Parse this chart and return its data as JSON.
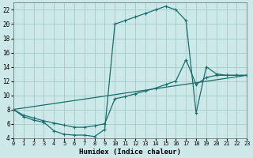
{
  "xlabel": "Humidex (Indice chaleur)",
  "bg_color": "#cde8e8",
  "grid_color": "#aacece",
  "line_color": "#1a6e6e",
  "xlim": [
    0,
    23
  ],
  "ylim": [
    4,
    23
  ],
  "yticks": [
    4,
    6,
    8,
    10,
    12,
    14,
    16,
    18,
    20,
    22
  ],
  "xticks": [
    0,
    1,
    2,
    3,
    4,
    5,
    6,
    7,
    8,
    9,
    10,
    11,
    12,
    13,
    14,
    15,
    16,
    17,
    18,
    19,
    20,
    21,
    22,
    23
  ],
  "curve1_x": [
    0,
    1,
    2,
    3,
    4,
    5,
    6,
    7,
    8,
    9,
    10,
    11,
    12,
    13,
    14,
    15,
    16,
    17,
    18,
    19,
    20,
    21,
    22,
    23
  ],
  "curve1_y": [
    8.0,
    7.0,
    6.5,
    6.2,
    5.0,
    4.5,
    4.4,
    4.4,
    4.2,
    5.2,
    20.0,
    20.5,
    21.0,
    21.5,
    22.0,
    22.5,
    22.0,
    20.5,
    7.5,
    14.0,
    13.0,
    12.8,
    12.8,
    12.8
  ],
  "curve2_x": [
    0,
    1,
    2,
    3,
    4,
    5,
    6,
    7,
    8,
    9,
    10,
    11,
    12,
    13,
    14,
    15,
    16,
    17,
    18,
    19,
    20,
    21,
    22,
    23
  ],
  "curve2_y": [
    8.0,
    7.2,
    6.8,
    6.4,
    6.1,
    5.8,
    5.5,
    5.5,
    5.7,
    6.0,
    9.5,
    9.8,
    10.2,
    10.6,
    11.0,
    11.5,
    12.0,
    15.0,
    11.5,
    12.5,
    12.8,
    12.8,
    12.8,
    12.8
  ],
  "curve3_x": [
    0,
    23
  ],
  "curve3_y": [
    8.0,
    12.8
  ]
}
